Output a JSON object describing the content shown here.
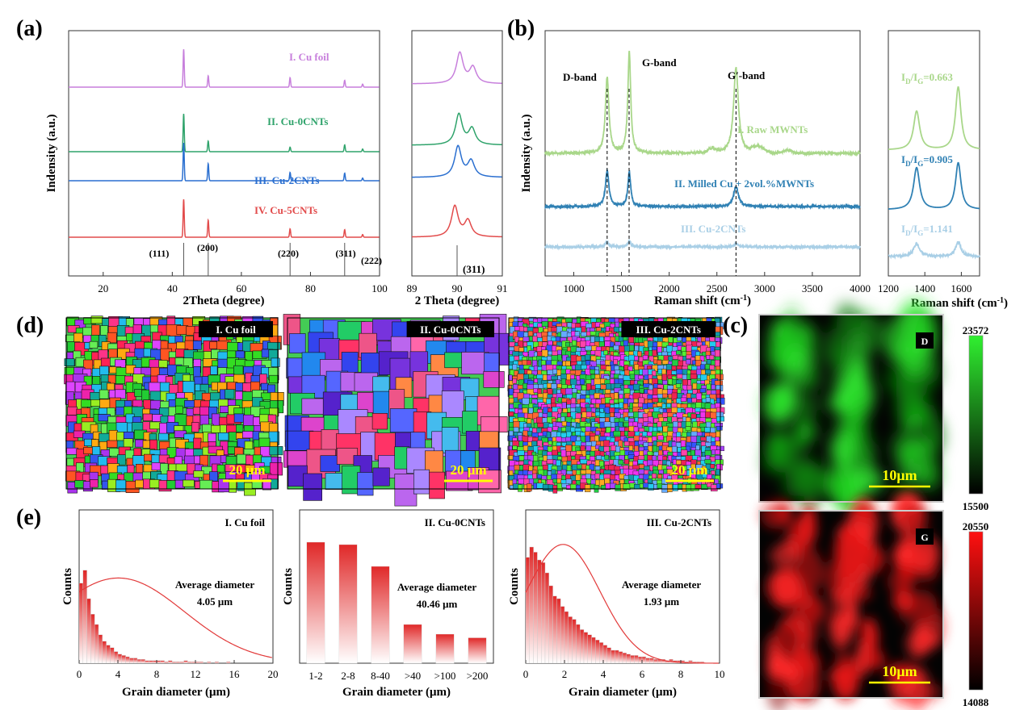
{
  "panel_letters": {
    "a": "(a)",
    "b": "(b)",
    "c": "(c)",
    "d": "(d)",
    "e": "(e)"
  },
  "colors": {
    "cu_foil": "#c77fdc",
    "cu_0cnts": "#2fa36b",
    "cu_2cnts": "#2a6fd0",
    "cu_5cnts": "#e24b4b",
    "raw_mwnts": "#a9d78a",
    "milled": "#3081b4",
    "cu_2cnts_raman": "#a9cfe6",
    "d_map": "#1ec81e",
    "g_map": "#e01414",
    "bar_red": "#e03232"
  },
  "chart_data": [
    {
      "id": "a-main",
      "type": "line",
      "xlabel": "2Theta (degree)",
      "ylabel": "Indensity (a.u.)",
      "xlim": [
        10,
        100
      ],
      "xticks": [
        20,
        40,
        60,
        80,
        100
      ],
      "peak_positions": [
        43.3,
        50.4,
        74.1,
        89.9,
        95.1
      ],
      "peak_labels": [
        "(111)",
        "(200)",
        "(220)",
        "(311)",
        "(222)"
      ],
      "series": [
        {
          "name": "I. Cu foil",
          "peak_heights": [
            1.0,
            0.3,
            0.25,
            0.18,
            0.08
          ]
        },
        {
          "name": "II. Cu-0CNTs",
          "peak_heights": [
            1.0,
            0.28,
            0.12,
            0.18,
            0.07
          ]
        },
        {
          "name": "III. Cu-2CNTs",
          "peak_heights": [
            1.0,
            0.45,
            0.22,
            0.2,
            0.07
          ]
        },
        {
          "name": "IV. Cu-5CNTs",
          "peak_heights": [
            1.0,
            0.45,
            0.22,
            0.2,
            0.07
          ]
        }
      ]
    },
    {
      "id": "a-zoom",
      "type": "line",
      "xlabel": "2 Theta (degree)",
      "xlim": [
        89,
        91
      ],
      "xticks": [
        89,
        90,
        91
      ],
      "peak_label": "(311)",
      "peak_label_position": 90
    },
    {
      "id": "b-main",
      "type": "line",
      "xlabel": "Raman shift (cm",
      "xlabel_sup": "-1",
      "xlabel_tail": ")",
      "ylabel": "Indensity (a.u.)",
      "xlim": [
        700,
        4000
      ],
      "xticks": [
        1000,
        1500,
        2000,
        2500,
        3000,
        3500,
        4000
      ],
      "band_labels": [
        "D-band",
        "G-band",
        "G′-band"
      ],
      "band_positions": [
        1350,
        1580,
        2700
      ],
      "series": [
        {
          "name": "I. Raw MWNTs",
          "peaks": {
            "D": 0.75,
            "G": 1.0,
            "G2": 0.85
          }
        },
        {
          "name": "II. Milled Cu + 2vol.%MWNTs",
          "peaks": {
            "D": 0.35,
            "G": 0.34,
            "G2": 0.2
          }
        },
        {
          "name": "III. Cu-2CNTs",
          "peaks": {
            "D": 0.05,
            "G": 0.06,
            "G2": 0.03
          }
        }
      ]
    },
    {
      "id": "b-zoom",
      "type": "line",
      "xlabel": "Raman shift (cm",
      "xlabel_sup": "-1",
      "xlabel_tail": ")",
      "xlim": [
        1200,
        1700
      ],
      "xticks": [
        1200,
        1400,
        1600
      ],
      "ratios": [
        {
          "prefix": "I",
          "sub1": "D",
          "mid": "/I",
          "sub2": "G",
          "value": "=0.663"
        },
        {
          "prefix": "I",
          "sub1": "D",
          "mid": "/I",
          "sub2": "G",
          "value": "=0.905"
        },
        {
          "prefix": "I",
          "sub1": "D",
          "mid": "/I",
          "sub2": "G",
          "value": "=1.141"
        }
      ]
    },
    {
      "id": "e-1",
      "type": "bar",
      "title": "I. Cu foil",
      "xlabel": "Grain diameter (μm)",
      "ylabel": "Counts",
      "xlim": [
        0,
        20
      ],
      "xticks": [
        0,
        4,
        8,
        12,
        16,
        20
      ],
      "bin_width": 0.4,
      "values": [
        0.62,
        0.72,
        0.5,
        0.38,
        0.3,
        0.22,
        0.17,
        0.14,
        0.12,
        0.09,
        0.07,
        0.06,
        0.05,
        0.04,
        0.04,
        0.03,
        0.03,
        0.02,
        0.02,
        0.02,
        0.02,
        0.02,
        0.01,
        0.02,
        0.01,
        0.01,
        0.01,
        0.02,
        0.01,
        0.01,
        0.01,
        0.01,
        0.0,
        0.01,
        0.0,
        0.01,
        0.0,
        0.0,
        0.01,
        0.0
      ],
      "fit_peak_x": 4.05,
      "fit_peak_y": 0.66,
      "fit_sigma": 6.8,
      "annotation": "Average diameter",
      "annotation_value": "4.05 μm"
    },
    {
      "id": "e-2",
      "type": "bar",
      "title": "II. Cu-0CNTs",
      "xlabel": "Grain diameter (μm)",
      "ylabel": "Counts",
      "categories": [
        "1-2",
        "2-8",
        "8-40",
        ">40",
        ">100",
        ">200"
      ],
      "values": [
        1.0,
        0.98,
        0.8,
        0.32,
        0.24,
        0.21
      ],
      "annotation": "Average diameter",
      "annotation_value": "40.46 μm"
    },
    {
      "id": "e-3",
      "type": "bar",
      "title": "III. Cu-2CNTs",
      "xlabel": "Grain diameter (μm)",
      "ylabel": "Counts",
      "xlim": [
        0,
        10
      ],
      "xticks": [
        0,
        2,
        4,
        6,
        8,
        10
      ],
      "bin_width": 0.2,
      "values": [
        0.82,
        0.9,
        0.86,
        0.8,
        0.78,
        0.7,
        0.6,
        0.52,
        0.5,
        0.44,
        0.4,
        0.36,
        0.34,
        0.3,
        0.26,
        0.24,
        0.22,
        0.2,
        0.18,
        0.16,
        0.14,
        0.12,
        0.1,
        0.1,
        0.09,
        0.08,
        0.07,
        0.06,
        0.06,
        0.05,
        0.05,
        0.04,
        0.04,
        0.03,
        0.03,
        0.03,
        0.02,
        0.03,
        0.02,
        0.02,
        0.02,
        0.01,
        0.02,
        0.01,
        0.01,
        0.01,
        0.0
      ],
      "fit_peak_x": 1.93,
      "fit_peak_y": 0.92,
      "fit_sigma": 1.9,
      "annotation": "Average diameter",
      "annotation_value": "1.93 μm"
    }
  ],
  "ebsd": [
    {
      "label": "I. Cu foil",
      "scale": "20 μm"
    },
    {
      "label": "II. Cu-0CNTs",
      "scale": "20 μm"
    },
    {
      "label": "III. Cu-2CNTs",
      "scale": "20 μm"
    }
  ],
  "maps": [
    {
      "label": "D",
      "scale": "10μm",
      "cbar_max": "23572",
      "cbar_min": "15500"
    },
    {
      "label": "G",
      "scale": "10μm",
      "cbar_max": "20550",
      "cbar_min": "14088"
    }
  ]
}
